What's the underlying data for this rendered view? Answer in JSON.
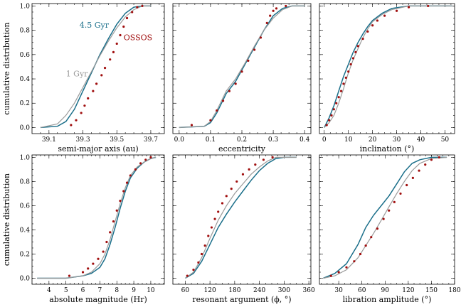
{
  "figure": {
    "type": "cumulative-distribution-grid",
    "layout": "2x3"
  },
  "colors": {
    "gyr45": "#1b6f8a",
    "gyr1": "#9a9a9a",
    "ossos": "#a00e0e"
  },
  "chart_data": [
    {
      "type": "line",
      "xlabel": "semi-major axis (au)",
      "ylabel": "cumulative distribution",
      "xlim": [
        39.0,
        39.78
      ],
      "ylim": [
        -0.05,
        1.02
      ],
      "xticks": [
        39.1,
        39.3,
        39.5,
        39.7
      ],
      "xtick_labels": [
        "39.1",
        "39.3",
        "39.5",
        "39.7"
      ],
      "yticks": [
        0.0,
        0.2,
        0.4,
        0.6,
        0.8,
        1.0
      ],
      "ytick_labels": [
        "0.0",
        "0.2",
        "0.4",
        "0.6",
        "0.8",
        "1.0"
      ],
      "annotations": [
        {
          "text": "4.5 Gyr",
          "x": 39.28,
          "y": 0.82,
          "series": "gyr45"
        },
        {
          "text": "OSSOS",
          "x": 39.54,
          "y": 0.72,
          "series": "ossos"
        },
        {
          "text": "1 Gyr",
          "x": 39.2,
          "y": 0.42,
          "series": "gyr1"
        }
      ],
      "series": [
        {
          "name": "4.5 Gyr",
          "color_key": "gyr45",
          "style": "line",
          "x": [
            39.05,
            39.15,
            39.2,
            39.25,
            39.3,
            39.35,
            39.4,
            39.45,
            39.5,
            39.55,
            39.6,
            39.65,
            39.7
          ],
          "y": [
            0.0,
            0.01,
            0.05,
            0.15,
            0.3,
            0.45,
            0.6,
            0.73,
            0.85,
            0.94,
            0.99,
            1.0,
            1.0
          ]
        },
        {
          "name": "1 Gyr",
          "color_key": "gyr1",
          "style": "line",
          "x": [
            39.05,
            39.15,
            39.2,
            39.25,
            39.3,
            39.35,
            39.4,
            39.45,
            39.5,
            39.55,
            39.6,
            39.65,
            39.7
          ],
          "y": [
            0.0,
            0.03,
            0.1,
            0.2,
            0.33,
            0.46,
            0.59,
            0.71,
            0.82,
            0.91,
            0.97,
            1.0,
            1.0
          ]
        },
        {
          "name": "OSSOS",
          "color_key": "ossos",
          "style": "points",
          "x": [
            39.23,
            39.26,
            39.29,
            39.31,
            39.33,
            39.36,
            39.38,
            39.41,
            39.43,
            39.46,
            39.48,
            39.5,
            39.52,
            39.54,
            39.56,
            39.59,
            39.62,
            39.65
          ],
          "y": [
            0.02,
            0.06,
            0.12,
            0.18,
            0.24,
            0.3,
            0.36,
            0.43,
            0.49,
            0.56,
            0.62,
            0.69,
            0.76,
            0.83,
            0.9,
            0.95,
            0.99,
            1.0
          ]
        }
      ]
    },
    {
      "type": "line",
      "xlabel": "eccentricity",
      "ylabel": "",
      "xlim": [
        -0.02,
        0.42
      ],
      "ylim": [
        -0.05,
        1.02
      ],
      "xticks": [
        0.0,
        0.1,
        0.2,
        0.3,
        0.4
      ],
      "xtick_labels": [
        "0.0",
        "0.1",
        "0.2",
        "0.3",
        "0.4"
      ],
      "yticks": [
        0.0,
        0.2,
        0.4,
        0.6,
        0.8,
        1.0
      ],
      "ytick_labels": [],
      "annotations": [],
      "series": [
        {
          "name": "4.5 Gyr",
          "color_key": "gyr45",
          "style": "line",
          "x": [
            0.0,
            0.08,
            0.1,
            0.12,
            0.15,
            0.18,
            0.21,
            0.24,
            0.27,
            0.3,
            0.33,
            0.36,
            0.4
          ],
          "y": [
            0.0,
            0.01,
            0.04,
            0.12,
            0.28,
            0.38,
            0.52,
            0.66,
            0.8,
            0.92,
            0.98,
            1.0,
            1.0
          ]
        },
        {
          "name": "1 Gyr",
          "color_key": "gyr1",
          "style": "line",
          "x": [
            0.0,
            0.08,
            0.1,
            0.12,
            0.15,
            0.18,
            0.21,
            0.24,
            0.27,
            0.3,
            0.33,
            0.36,
            0.4
          ],
          "y": [
            0.0,
            0.01,
            0.05,
            0.14,
            0.3,
            0.4,
            0.53,
            0.67,
            0.8,
            0.9,
            0.97,
            1.0,
            1.0
          ]
        },
        {
          "name": "OSSOS",
          "color_key": "ossos",
          "style": "points",
          "x": [
            0.04,
            0.1,
            0.12,
            0.14,
            0.16,
            0.18,
            0.2,
            0.22,
            0.24,
            0.26,
            0.28,
            0.29,
            0.3,
            0.31,
            0.34
          ],
          "y": [
            0.02,
            0.06,
            0.14,
            0.22,
            0.3,
            0.36,
            0.46,
            0.55,
            0.64,
            0.74,
            0.86,
            0.92,
            0.96,
            0.98,
            1.0
          ]
        }
      ]
    },
    {
      "type": "line",
      "xlabel": "inclination (°)",
      "ylabel": "",
      "xlim": [
        -2,
        54
      ],
      "ylim": [
        -0.05,
        1.02
      ],
      "xticks": [
        0,
        10,
        20,
        30,
        40,
        50
      ],
      "xtick_labels": [
        "0",
        "10",
        "20",
        "30",
        "40",
        "50"
      ],
      "yticks": [
        0.0,
        0.2,
        0.4,
        0.6,
        0.8,
        1.0
      ],
      "ytick_labels": [],
      "annotations": [],
      "series": [
        {
          "name": "4.5 Gyr",
          "color_key": "gyr45",
          "style": "line",
          "x": [
            0,
            2,
            4,
            6,
            8,
            10,
            12,
            14,
            16,
            18,
            20,
            24,
            28,
            35,
            53
          ],
          "y": [
            0.0,
            0.08,
            0.18,
            0.3,
            0.42,
            0.52,
            0.62,
            0.7,
            0.77,
            0.83,
            0.88,
            0.94,
            0.98,
            1.0,
            1.0
          ]
        },
        {
          "name": "1 Gyr",
          "color_key": "gyr1",
          "style": "line",
          "x": [
            0,
            2,
            4,
            6,
            8,
            10,
            12,
            14,
            16,
            18,
            20,
            24,
            28,
            35,
            53
          ],
          "y": [
            0.0,
            0.04,
            0.1,
            0.2,
            0.32,
            0.45,
            0.56,
            0.65,
            0.74,
            0.81,
            0.87,
            0.93,
            0.97,
            1.0,
            1.0
          ]
        },
        {
          "name": "OSSOS",
          "color_key": "ossos",
          "style": "points",
          "x": [
            1,
            2,
            3,
            4,
            5,
            6,
            7,
            8,
            9,
            10,
            11,
            12,
            13,
            14,
            16,
            18,
            20,
            22,
            25,
            30,
            35,
            43
          ],
          "y": [
            0.02,
            0.06,
            0.1,
            0.15,
            0.2,
            0.25,
            0.3,
            0.36,
            0.41,
            0.46,
            0.52,
            0.57,
            0.62,
            0.67,
            0.73,
            0.79,
            0.84,
            0.88,
            0.92,
            0.96,
            0.99,
            1.0
          ]
        }
      ]
    },
    {
      "type": "line",
      "xlabel": "absolute magnitude (Hr)",
      "ylabel": "cumulative distribution",
      "xlim": [
        3.0,
        10.8
      ],
      "ylim": [
        -0.05,
        1.02
      ],
      "xticks": [
        4,
        5,
        6,
        7,
        8,
        9,
        10
      ],
      "xtick_labels": [
        "4",
        "5",
        "6",
        "7",
        "8",
        "9",
        "10"
      ],
      "yticks": [
        0.0,
        0.2,
        0.4,
        0.6,
        0.8,
        1.0
      ],
      "ytick_labels": [
        "0.0",
        "0.2",
        "0.4",
        "0.6",
        "0.8",
        "1.0"
      ],
      "annotations": [],
      "series": [
        {
          "name": "4.5 Gyr",
          "color_key": "gyr45",
          "style": "line",
          "x": [
            3.3,
            5.0,
            6.0,
            6.5,
            7.0,
            7.3,
            7.6,
            7.9,
            8.2,
            8.5,
            8.8,
            9.2,
            9.6,
            10.0,
            10.3
          ],
          "y": [
            0.0,
            0.0,
            0.02,
            0.04,
            0.09,
            0.16,
            0.28,
            0.42,
            0.58,
            0.72,
            0.83,
            0.91,
            0.96,
            0.99,
            1.0
          ]
        },
        {
          "name": "1 Gyr",
          "color_key": "gyr1",
          "style": "line",
          "x": [
            3.3,
            5.0,
            6.0,
            6.5,
            7.0,
            7.3,
            7.6,
            7.9,
            8.2,
            8.5,
            8.8,
            9.2,
            9.6,
            10.0,
            10.3
          ],
          "y": [
            0.0,
            0.0,
            0.02,
            0.05,
            0.12,
            0.2,
            0.32,
            0.47,
            0.62,
            0.75,
            0.85,
            0.92,
            0.96,
            0.99,
            1.0
          ]
        },
        {
          "name": "OSSOS",
          "color_key": "ossos",
          "style": "points",
          "x": [
            5.2,
            6.0,
            6.3,
            6.6,
            6.9,
            7.2,
            7.4,
            7.6,
            7.8,
            8.0,
            8.2,
            8.4,
            8.6,
            8.8,
            9.1,
            9.4,
            9.7,
            10.0
          ],
          "y": [
            0.02,
            0.05,
            0.08,
            0.12,
            0.16,
            0.22,
            0.3,
            0.38,
            0.47,
            0.56,
            0.64,
            0.72,
            0.79,
            0.85,
            0.9,
            0.95,
            0.98,
            1.0
          ]
        }
      ]
    },
    {
      "type": "line",
      "xlabel": "resonant argument (ϕ, °)",
      "ylabel": "",
      "xlim": [
        30,
        365
      ],
      "ylim": [
        -0.05,
        1.02
      ],
      "xticks": [
        60,
        120,
        180,
        240,
        300,
        360
      ],
      "xtick_labels": [
        "60",
        "120",
        "180",
        "240",
        "300",
        "360"
      ],
      "yticks": [
        0.0,
        0.2,
        0.4,
        0.6,
        0.8,
        1.0
      ],
      "ytick_labels": [],
      "annotations": [],
      "series": [
        {
          "name": "4.5 Gyr",
          "color_key": "gyr45",
          "style": "line",
          "x": [
            60,
            80,
            100,
            120,
            140,
            160,
            180,
            200,
            220,
            240,
            260,
            280,
            300,
            330
          ],
          "y": [
            0.0,
            0.04,
            0.14,
            0.28,
            0.42,
            0.53,
            0.63,
            0.72,
            0.81,
            0.89,
            0.95,
            0.99,
            1.0,
            1.0
          ]
        },
        {
          "name": "1 Gyr",
          "color_key": "gyr1",
          "style": "line",
          "x": [
            60,
            80,
            100,
            120,
            140,
            160,
            180,
            200,
            220,
            240,
            260,
            280,
            300,
            330
          ],
          "y": [
            0.0,
            0.05,
            0.17,
            0.33,
            0.48,
            0.6,
            0.7,
            0.78,
            0.86,
            0.92,
            0.97,
            1.0,
            1.0,
            1.0
          ]
        },
        {
          "name": "OSSOS",
          "color_key": "ossos",
          "style": "points",
          "x": [
            65,
            80,
            92,
            100,
            108,
            116,
            124,
            132,
            140,
            150,
            160,
            172,
            185,
            200,
            215,
            230,
            250,
            272
          ],
          "y": [
            0.02,
            0.07,
            0.13,
            0.2,
            0.27,
            0.35,
            0.42,
            0.49,
            0.55,
            0.62,
            0.68,
            0.74,
            0.8,
            0.86,
            0.9,
            0.94,
            0.98,
            1.0
          ]
        }
      ]
    },
    {
      "type": "line",
      "xlabel": "libration amplitude (°)",
      "ylabel": "",
      "xlim": [
        5,
        180
      ],
      "ylim": [
        -0.05,
        1.02
      ],
      "xticks": [
        30,
        60,
        90,
        120,
        150,
        180
      ],
      "xtick_labels": [
        "30",
        "60",
        "90",
        "120",
        "150",
        "180"
      ],
      "yticks": [
        0.0,
        0.2,
        0.4,
        0.6,
        0.8,
        1.0
      ],
      "ytick_labels": [],
      "annotations": [],
      "series": [
        {
          "name": "4.5 Gyr",
          "color_key": "gyr45",
          "style": "line",
          "x": [
            10,
            25,
            40,
            55,
            65,
            75,
            85,
            95,
            105,
            115,
            125,
            135,
            150,
            170
          ],
          "y": [
            0.0,
            0.04,
            0.12,
            0.28,
            0.42,
            0.52,
            0.6,
            0.68,
            0.78,
            0.88,
            0.95,
            0.98,
            1.0,
            1.0
          ]
        },
        {
          "name": "1 Gyr",
          "color_key": "gyr1",
          "style": "line",
          "x": [
            10,
            25,
            40,
            55,
            65,
            75,
            85,
            95,
            105,
            115,
            125,
            135,
            150,
            170
          ],
          "y": [
            0.0,
            0.02,
            0.07,
            0.17,
            0.27,
            0.37,
            0.48,
            0.59,
            0.7,
            0.8,
            0.89,
            0.95,
            0.99,
            1.0
          ]
        },
        {
          "name": "OSSOS",
          "color_key": "ossos",
          "style": "points",
          "x": [
            20,
            30,
            40,
            50,
            58,
            65,
            72,
            80,
            88,
            95,
            102,
            110,
            118,
            126,
            134,
            142,
            150,
            160
          ],
          "y": [
            0.02,
            0.05,
            0.09,
            0.14,
            0.2,
            0.27,
            0.34,
            0.41,
            0.49,
            0.56,
            0.63,
            0.7,
            0.77,
            0.83,
            0.89,
            0.94,
            0.98,
            1.0
          ]
        }
      ]
    }
  ]
}
